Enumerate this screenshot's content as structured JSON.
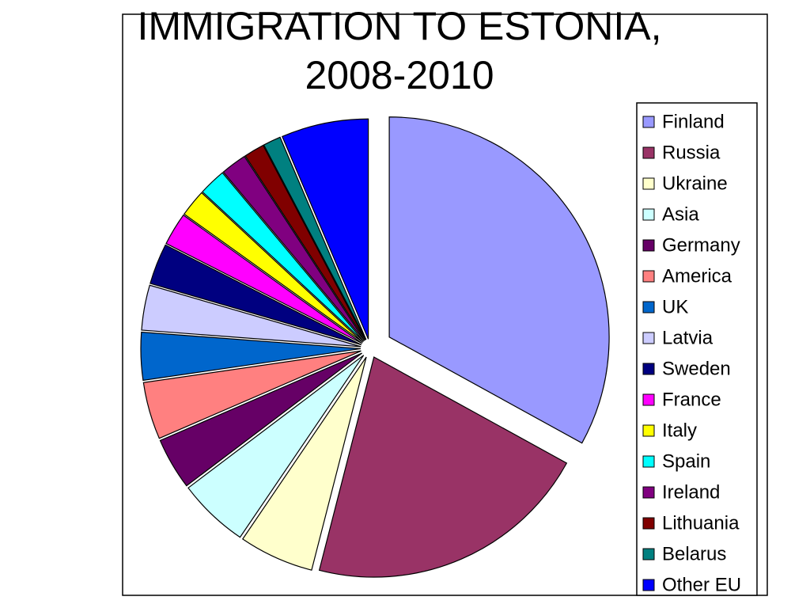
{
  "chart_data": {
    "type": "pie",
    "title": "IMMIGRATION TO ESTONIA, 2008-2010",
    "categories": [
      "Finland",
      "Russia",
      "Ukraine",
      "Asia",
      "Germany",
      "America",
      "UK",
      "Latvia",
      "Sweden",
      "France",
      "Italy",
      "Spain",
      "Ireland",
      "Lithuania",
      "Belarus",
      "Other EU"
    ],
    "values": [
      33,
      21,
      5.5,
      5.2,
      3.8,
      4.2,
      3.5,
      3.3,
      3,
      2.4,
      2,
      2,
      1.9,
      1.5,
      1.3,
      6.4
    ],
    "colors": [
      "#9999ff",
      "#993366",
      "#ffffcc",
      "#ccffff",
      "#660066",
      "#ff8080",
      "#0066cc",
      "#ccccff",
      "#000080",
      "#ff00ff",
      "#ffff00",
      "#00ffff",
      "#800080",
      "#800000",
      "#008080",
      "#0000ff"
    ],
    "legend": "right"
  }
}
